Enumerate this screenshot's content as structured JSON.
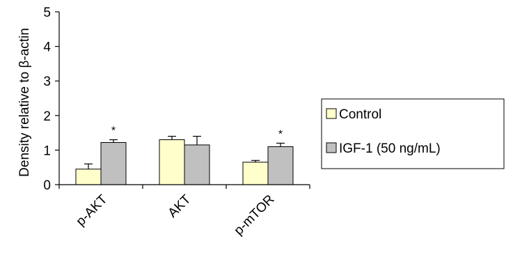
{
  "chart_data": {
    "type": "bar",
    "categories": [
      "p-AKT",
      "AKT",
      "p-mTOR"
    ],
    "series": [
      {
        "name": "Control",
        "color": "#ffffcc",
        "values": [
          0.45,
          1.3,
          0.65
        ],
        "errors": [
          0.15,
          0.1,
          0.05
        ],
        "annotations": [
          "",
          "",
          ""
        ]
      },
      {
        "name": "IGF-1 (50 ng/mL)",
        "color": "#c0c0c0",
        "values": [
          1.22,
          1.15,
          1.1
        ],
        "errors": [
          0.08,
          0.25,
          0.1
        ],
        "annotations": [
          "*",
          "",
          "*"
        ]
      }
    ],
    "ylabel": "Density relative to β-actin",
    "xlabel": "",
    "ylim": [
      0,
      5
    ],
    "yticks": [
      0,
      1,
      2,
      3,
      4,
      5
    ],
    "grid": false,
    "legend_position": "right"
  }
}
